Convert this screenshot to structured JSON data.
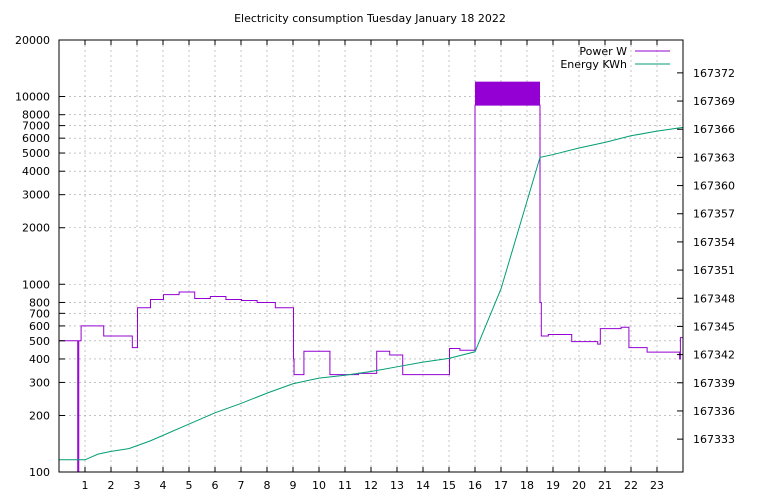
{
  "chart_data": {
    "type": "line",
    "title": "Electricity consumption Tuesday January 18 2022",
    "xlabel": "",
    "ylabel": "",
    "y2label": "",
    "x_ticks": [
      1,
      2,
      3,
      4,
      5,
      6,
      7,
      8,
      9,
      10,
      11,
      12,
      13,
      14,
      15,
      16,
      17,
      18,
      19,
      20,
      21,
      22,
      23
    ],
    "xlim": [
      0,
      24
    ],
    "y_ticks": [
      100,
      200,
      300,
      400,
      500,
      600,
      700,
      800,
      1000,
      2000,
      3000,
      4000,
      5000,
      6000,
      7000,
      8000,
      10000,
      20000
    ],
    "ylim": [
      100,
      20000
    ],
    "y_scale": "log",
    "y2_ticks": [
      167333,
      167336,
      167339,
      167342,
      167345,
      167348,
      167351,
      167354,
      167357,
      167360,
      167363,
      167366,
      167369,
      167372
    ],
    "y2lim": [
      167329.5,
      167375.5
    ],
    "grid": true,
    "legend_position": "top-right",
    "series": [
      {
        "name": "Power W",
        "axis": "y1",
        "color": "#9400d3",
        "style": "steps",
        "points": [
          [
            0.0,
            500
          ],
          [
            0.7,
            500
          ],
          [
            0.72,
            100
          ],
          [
            0.74,
            100
          ],
          [
            0.76,
            500
          ],
          [
            0.85,
            600
          ],
          [
            1.7,
            600
          ],
          [
            1.72,
            530
          ],
          [
            2.8,
            530
          ],
          [
            2.82,
            460
          ],
          [
            3.0,
            460
          ],
          [
            3.02,
            750
          ],
          [
            3.5,
            750
          ],
          [
            3.52,
            830
          ],
          [
            4.0,
            830
          ],
          [
            4.02,
            880
          ],
          [
            4.6,
            880
          ],
          [
            4.62,
            910
          ],
          [
            5.2,
            910
          ],
          [
            5.22,
            840
          ],
          [
            5.8,
            840
          ],
          [
            5.82,
            860
          ],
          [
            6.4,
            860
          ],
          [
            6.42,
            830
          ],
          [
            7.0,
            830
          ],
          [
            7.02,
            820
          ],
          [
            7.6,
            820
          ],
          [
            7.62,
            800
          ],
          [
            8.3,
            800
          ],
          [
            8.32,
            750
          ],
          [
            9.0,
            750
          ],
          [
            9.02,
            400
          ],
          [
            9.04,
            330
          ],
          [
            9.4,
            330
          ],
          [
            9.42,
            440
          ],
          [
            10.4,
            440
          ],
          [
            10.42,
            330
          ],
          [
            11.5,
            330
          ],
          [
            11.52,
            335
          ],
          [
            12.2,
            335
          ],
          [
            12.22,
            440
          ],
          [
            12.7,
            440
          ],
          [
            12.72,
            420
          ],
          [
            13.2,
            420
          ],
          [
            13.22,
            330
          ],
          [
            15.0,
            330
          ],
          [
            15.02,
            455
          ],
          [
            15.4,
            455
          ],
          [
            15.42,
            445
          ],
          [
            15.9,
            445
          ],
          [
            16.0,
            445
          ],
          [
            16.0,
            9000
          ],
          [
            18.5,
            9000
          ],
          [
            18.5,
            800
          ],
          [
            18.55,
            530
          ],
          [
            18.8,
            530
          ],
          [
            18.82,
            540
          ],
          [
            19.7,
            540
          ],
          [
            19.72,
            495
          ],
          [
            20.7,
            495
          ],
          [
            20.72,
            480
          ],
          [
            20.8,
            480
          ],
          [
            20.82,
            580
          ],
          [
            21.6,
            580
          ],
          [
            21.62,
            590
          ],
          [
            21.9,
            590
          ],
          [
            21.92,
            460
          ],
          [
            22.6,
            460
          ],
          [
            22.62,
            435
          ],
          [
            23.85,
            435
          ],
          [
            23.87,
            400
          ],
          [
            23.9,
            520
          ],
          [
            24.0,
            520
          ]
        ],
        "band": {
          "x_start": 16.0,
          "x_end": 18.5,
          "y_low": 9000,
          "y_high": 12000
        }
      },
      {
        "name": "Energy KWh",
        "axis": "y2",
        "color": "#009e73",
        "style": "line",
        "points": [
          [
            0.0,
            167330.8
          ],
          [
            1.0,
            167330.8
          ],
          [
            1.5,
            167331.4
          ],
          [
            2.0,
            167331.7
          ],
          [
            2.7,
            167332.0
          ],
          [
            3.5,
            167332.8
          ],
          [
            4.0,
            167333.4
          ],
          [
            5.0,
            167334.6
          ],
          [
            6.0,
            167335.8
          ],
          [
            7.0,
            167336.8
          ],
          [
            8.0,
            167337.9
          ],
          [
            9.0,
            167338.9
          ],
          [
            10.0,
            167339.5
          ],
          [
            11.0,
            167339.8
          ],
          [
            12.0,
            167340.2
          ],
          [
            13.0,
            167340.7
          ],
          [
            14.0,
            167341.2
          ],
          [
            15.0,
            167341.6
          ],
          [
            16.0,
            167342.3
          ],
          [
            17.0,
            167349.0
          ],
          [
            18.5,
            167363.0
          ],
          [
            19.0,
            167363.3
          ],
          [
            20.0,
            167364.0
          ],
          [
            21.0,
            167364.6
          ],
          [
            22.0,
            167365.3
          ],
          [
            23.0,
            167365.8
          ],
          [
            24.0,
            167366.2
          ]
        ]
      }
    ]
  }
}
